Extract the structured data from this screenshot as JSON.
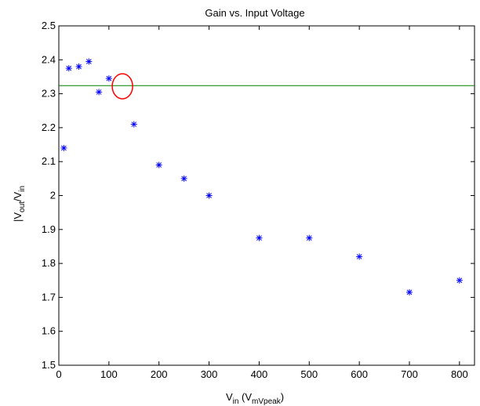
{
  "chart_data": {
    "type": "scatter",
    "title": "Gain vs. Input Voltage",
    "xlabel": {
      "main": "V",
      "main_sub": "in",
      "paren_open": " (V",
      "paren_sub": "mVpeak",
      "paren_close": ")"
    },
    "ylabel": {
      "bar_open": "|V",
      "sub1": "out",
      "mid": "/V",
      "sub2": "in"
    },
    "xlim": [
      0,
      830
    ],
    "ylim": [
      1.5,
      2.5
    ],
    "xticks": [
      0,
      100,
      200,
      300,
      400,
      500,
      600,
      700,
      800
    ],
    "yticks": [
      1.5,
      1.6,
      1.7,
      1.8,
      1.9,
      2,
      2.1,
      2.2,
      2.3,
      2.4,
      2.5
    ],
    "ytick_labels": [
      "1.5",
      "1.6",
      "1.7",
      "1.8",
      "1.9",
      "2",
      "2.1",
      "2.2",
      "2.3",
      "2.4",
      "2.5"
    ],
    "grid": false,
    "series": [
      {
        "marker": "asterisk",
        "color": "#0000ff",
        "x": [
          10,
          20,
          40,
          60,
          80,
          100,
          150,
          200,
          250,
          300,
          400,
          500,
          600,
          700,
          800
        ],
        "y": [
          2.14,
          2.375,
          2.38,
          2.395,
          2.305,
          2.345,
          2.21,
          2.09,
          2.05,
          2.0,
          1.875,
          1.875,
          1.82,
          1.715,
          1.75
        ]
      }
    ],
    "reference_line": {
      "y": 2.324,
      "x_start": 0,
      "x_end": 830,
      "color": "#008000"
    },
    "annotation_circle": {
      "x": 127,
      "y": 2.322,
      "color": "#ff0000"
    }
  }
}
